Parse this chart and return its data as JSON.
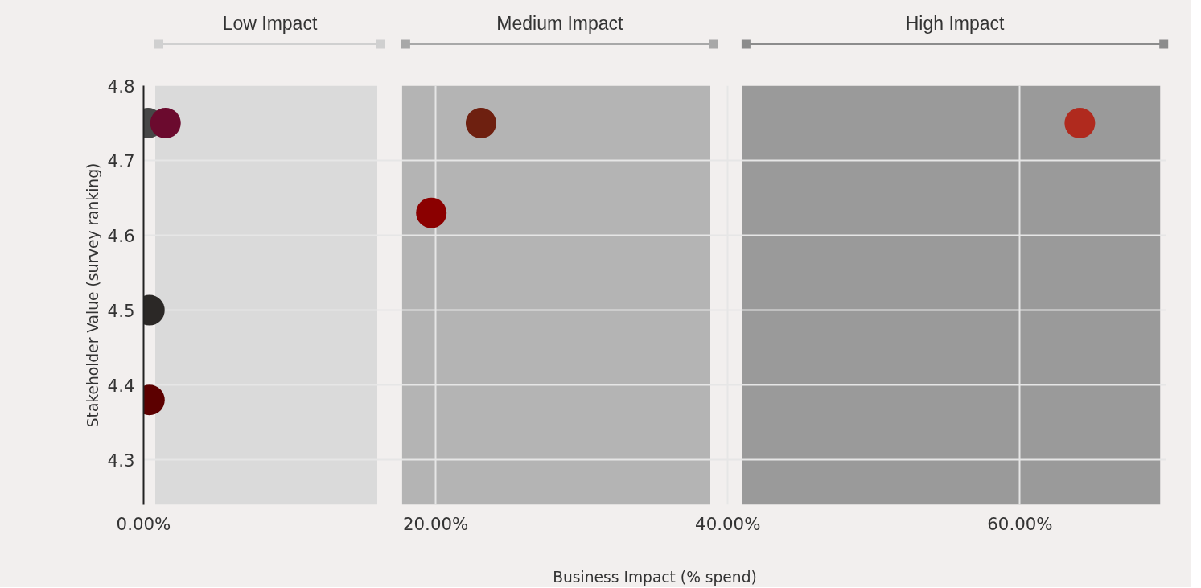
{
  "chart_data": {
    "type": "scatter",
    "xlabel": "Business Impact (% spend)",
    "ylabel": "Stakeholder Value (survey ranking)",
    "x": [
      0.3,
      1.5,
      23.1,
      19.7,
      0.4,
      0.4,
      64.1
    ],
    "values": [
      4.75,
      4.75,
      4.75,
      4.63,
      4.5,
      4.38,
      4.75
    ],
    "colors": [
      "#474747",
      "#6b0a2e",
      "#6e2010",
      "#8b0000",
      "#2b2826",
      "#5c0000",
      "#b02a1e"
    ],
    "marker": "circle",
    "xlim": [
      0,
      70
    ],
    "ylim": [
      4.24,
      4.8
    ],
    "xticks": [
      {
        "value": 0,
        "label": "0.00%"
      },
      {
        "value": 20,
        "label": "20.00%"
      },
      {
        "value": 40,
        "label": "40.00%"
      },
      {
        "value": 60,
        "label": "60.00%"
      }
    ],
    "yticks": [
      4.3,
      4.4,
      4.5,
      4.6,
      4.7,
      4.8
    ],
    "grid": true,
    "bands": [
      {
        "axis": "x",
        "from": 0.8,
        "to": 16.0,
        "label": "Low Impact",
        "color": "#dadada"
      },
      {
        "axis": "x",
        "from": 17.7,
        "to": 38.8,
        "label": "Medium Impact",
        "color": "#b4b4b4"
      },
      {
        "axis": "x",
        "from": 41.0,
        "to": 69.6,
        "label": "High Impact",
        "color": "#9a9a9a"
      }
    ]
  }
}
